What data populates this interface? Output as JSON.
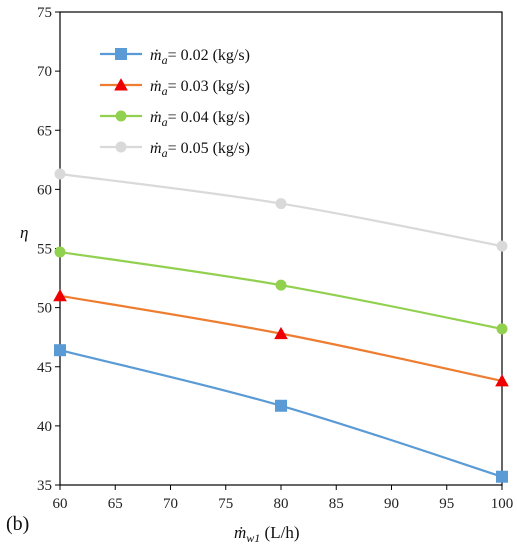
{
  "panel_label": "(b)",
  "chart_data": {
    "type": "line",
    "title": "",
    "xlabel": "ṁ_w1 (L/h)",
    "xlabel_parts": {
      "symbol": "ṁ",
      "subscript": "w1",
      "unit": " (L/h)"
    },
    "ylabel": "η",
    "xlim": [
      60,
      100
    ],
    "ylim": [
      35,
      75
    ],
    "xticks": [
      "60",
      "65",
      "70",
      "75",
      "80",
      "85",
      "90",
      "95",
      "100"
    ],
    "yticks": [
      "35",
      "40",
      "45",
      "50",
      "55",
      "60",
      "65",
      "70",
      "75"
    ],
    "grid": false,
    "legend_position": "top-left",
    "series": [
      {
        "name": "ṁa= 0.02 (kg/s)",
        "legend_symbol": "ṁ",
        "legend_sub": "a",
        "legend_value": "= 0.02 (kg/s)",
        "color": "#5b9bd5",
        "marker": "square",
        "x": [
          60,
          80,
          100
        ],
        "y": [
          46.4,
          41.7,
          35.7
        ]
      },
      {
        "name": "ṁa= 0.03 (kg/s)",
        "legend_symbol": "ṁ",
        "legend_sub": "a",
        "legend_value": "= 0.03 (kg/s)",
        "color": "#ed7d31",
        "marker": "triangle",
        "marker_color": "#ee0000",
        "x": [
          60,
          80,
          100
        ],
        "y": [
          51.0,
          47.8,
          43.8
        ]
      },
      {
        "name": "ṁa= 0.04 (kg/s)",
        "legend_symbol": "ṁ",
        "legend_sub": "a",
        "legend_value": "= 0.04 (kg/s)",
        "color": "#92d050",
        "marker": "circle",
        "x": [
          60,
          80,
          100
        ],
        "y": [
          54.7,
          51.9,
          48.2
        ]
      },
      {
        "name": "ṁa= 0.05 (kg/s)",
        "legend_symbol": "ṁ",
        "legend_sub": "a",
        "legend_value": "= 0.05 (kg/s)",
        "color": "#d9d9d9",
        "marker": "circle",
        "x": [
          60,
          80,
          100
        ],
        "y": [
          61.3,
          58.8,
          55.2
        ]
      }
    ]
  }
}
